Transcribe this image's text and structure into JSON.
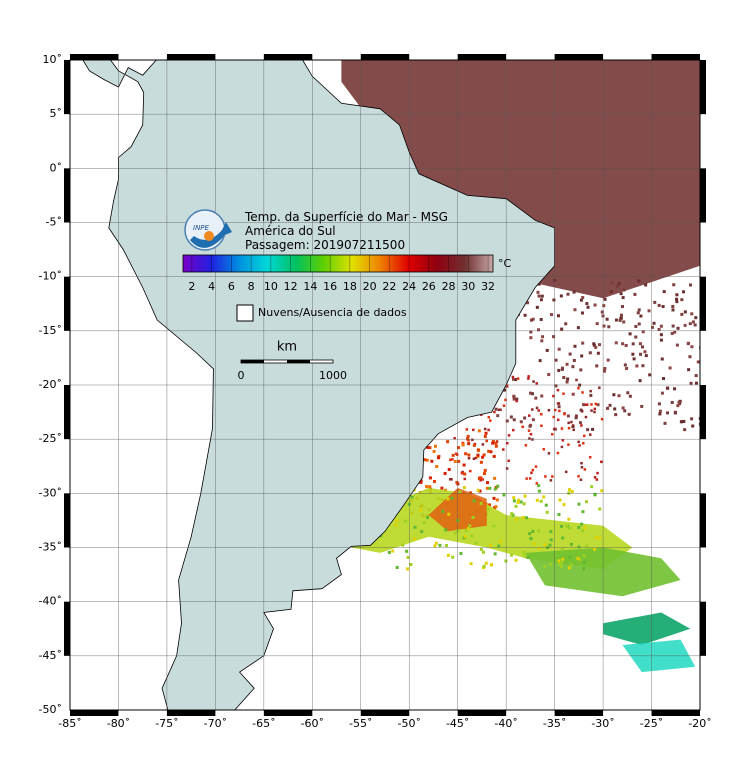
{
  "map": {
    "title_lines": [
      "Temp. da Superfície do Mar - MSG",
      "América do Sul",
      "Passagem: 201907211500"
    ],
    "logo_text": "INPE",
    "lon_ticks": [
      {
        "value": -85,
        "label": "-85˚"
      },
      {
        "value": -80,
        "label": "-80˚"
      },
      {
        "value": -75,
        "label": "-75˚"
      },
      {
        "value": -70,
        "label": "-70˚"
      },
      {
        "value": -65,
        "label": "-65˚"
      },
      {
        "value": -60,
        "label": "-60˚"
      },
      {
        "value": -55,
        "label": "-55˚"
      },
      {
        "value": -50,
        "label": "-50˚"
      },
      {
        "value": -45,
        "label": "-45˚"
      },
      {
        "value": -40,
        "label": "-40˚"
      },
      {
        "value": -35,
        "label": "-35˚"
      },
      {
        "value": -30,
        "label": "-30˚"
      },
      {
        "value": -25,
        "label": "-25˚"
      },
      {
        "value": -20,
        "label": "-20˚"
      }
    ],
    "lat_ticks": [
      {
        "value": 10,
        "label": "10˚"
      },
      {
        "value": 5,
        "label": "5˚"
      },
      {
        "value": 0,
        "label": "0˚"
      },
      {
        "value": -5,
        "label": "-5˚"
      },
      {
        "value": -10,
        "label": "-10˚"
      },
      {
        "value": -15,
        "label": "-15˚"
      },
      {
        "value": -20,
        "label": "-20˚"
      },
      {
        "value": -25,
        "label": "-25˚"
      },
      {
        "value": -30,
        "label": "-30˚"
      },
      {
        "value": -35,
        "label": "-35˚"
      },
      {
        "value": -40,
        "label": "-40˚"
      },
      {
        "value": -45,
        "label": "-45˚"
      },
      {
        "value": -50,
        "label": "-50˚"
      }
    ],
    "colorbar": {
      "unit": "°C",
      "range": [
        1.1,
        32.5
      ],
      "ticks": [
        2,
        4,
        6,
        8,
        10,
        12,
        14,
        16,
        18,
        20,
        22,
        24,
        26,
        28,
        30,
        32
      ],
      "colors": [
        "#7a00c8",
        "#2020e0",
        "#0090e0",
        "#00d8d8",
        "#00c060",
        "#60d000",
        "#e0e000",
        "#f08000",
        "#e00000",
        "#900010",
        "#703030",
        "#c8a8a8"
      ]
    },
    "legend": "Nuvens/Ausencia de dados",
    "scale_bar": {
      "unit": "km",
      "labels": [
        "0",
        "1000"
      ]
    }
  }
}
